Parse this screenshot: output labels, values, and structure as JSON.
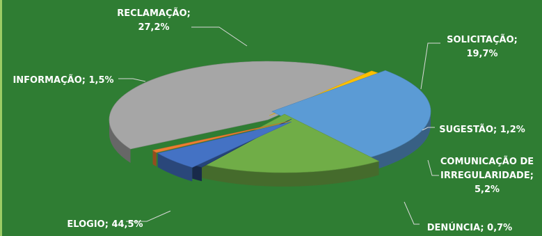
{
  "chart_data": {
    "type": "pie",
    "style": "3d-exploded",
    "legend": "none",
    "slices": [
      {
        "label": "ELOGIO",
        "value": 44.5,
        "value_text": "44,5%",
        "color": "#a6a6a6"
      },
      {
        "label": "INFORMAÇÃO",
        "value": 1.5,
        "value_text": "1,5%",
        "color": "#ffc000"
      },
      {
        "label": "RECLAMAÇÃO",
        "value": 27.2,
        "value_text": "27,2%",
        "color": "#5b9bd5"
      },
      {
        "label": "SOLICITAÇÃO",
        "value": 19.7,
        "value_text": "19,7%",
        "color": "#70ad47"
      },
      {
        "label": "SUGESTÃO",
        "value": 1.2,
        "value_text": "1,2%",
        "color": "#264478"
      },
      {
        "label": "COMUNICAÇÃO DE IRREGULARIDADE",
        "value": 5.2,
        "value_text": "5,2%",
        "color": "#4472c4"
      },
      {
        "label": "DENÚNCIA",
        "value": 0.7,
        "value_text": "0,7%",
        "color": "#ed7d31"
      }
    ]
  }
}
